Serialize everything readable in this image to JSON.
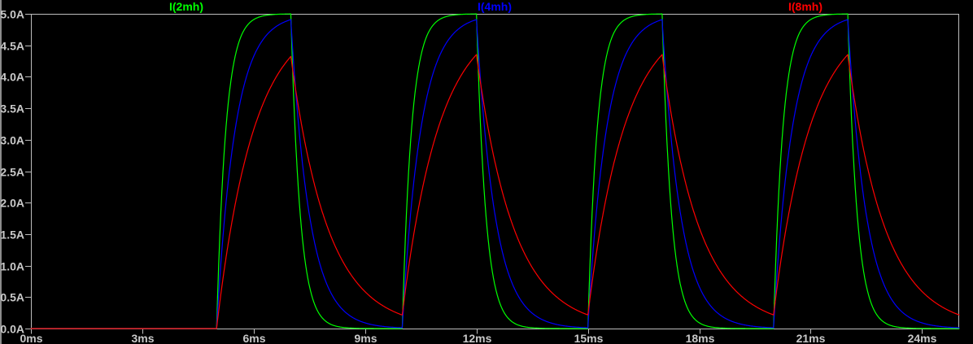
{
  "window": {
    "app": "waveform-viewer",
    "background_color": "#000000",
    "pane_edge_color": "#8c8c8c"
  },
  "chart_data": {
    "type": "line",
    "title": "",
    "xlabel": "",
    "ylabel": "",
    "grid": false,
    "legend_position": "top-inline",
    "axis_color": "#bdbdbd",
    "tick_color": "#bdbdbd",
    "text_color": "#c9c9c9",
    "xlim": [
      0,
      25
    ],
    "ylim": [
      0,
      5
    ],
    "x_ticks": [
      {
        "t_ms": 0,
        "label": "0ms"
      },
      {
        "t_ms": 3,
        "label": "3ms"
      },
      {
        "t_ms": 6,
        "label": "6ms"
      },
      {
        "t_ms": 9,
        "label": "9ms"
      },
      {
        "t_ms": 12,
        "label": "12ms"
      },
      {
        "t_ms": 15,
        "label": "15ms"
      },
      {
        "t_ms": 18,
        "label": "18ms"
      },
      {
        "t_ms": 21,
        "label": "21ms"
      },
      {
        "t_ms": 24,
        "label": "24ms"
      }
    ],
    "y_ticks": [
      {
        "value_A": 5.0,
        "label": "5.0A"
      },
      {
        "value_A": 4.5,
        "label": "4.5A"
      },
      {
        "value_A": 4.0,
        "label": "4.0A"
      },
      {
        "value_A": 3.5,
        "label": "3.5A"
      },
      {
        "value_A": 3.0,
        "label": "3.0A"
      },
      {
        "value_A": 2.5,
        "label": "2.5A"
      },
      {
        "value_A": 2.0,
        "label": "2.0A"
      },
      {
        "value_A": 1.5,
        "label": "1.5A"
      },
      {
        "value_A": 1.0,
        "label": "1.0A"
      },
      {
        "value_A": 0.5,
        "label": "0.5A"
      },
      {
        "value_A": 0.0,
        "label": "0.0A"
      }
    ],
    "waveform": {
      "model": "RL inductor current under a repeating voltage pulse: i rises as Imax*(1-exp(-t/tau)) while the pulse is on, decays as exp(-t/tau) while off",
      "amplitude_A": 5.0,
      "pulse_start_ms": 5.0,
      "pulse_width_ms": 2.0,
      "pulse_period_ms": 5.0,
      "num_pulses": 4,
      "t_end_ms": 25.0,
      "initial_current_A": 0.0
    },
    "series": [
      {
        "name": "I(2mh)",
        "color": "#00ff00",
        "tau_ms": 0.25,
        "peak_A": 5.0,
        "min_between_pulses_A": 0.0
      },
      {
        "name": "I(4mh)",
        "color": "#0000ff",
        "tau_ms": 0.5,
        "peak_A": 4.91,
        "min_between_pulses_A": 0.01
      },
      {
        "name": "I(8mh)",
        "color": "#ff0000",
        "tau_ms": 1.0,
        "peak_A": 4.33,
        "min_between_pulses_A": 0.22
      }
    ]
  }
}
